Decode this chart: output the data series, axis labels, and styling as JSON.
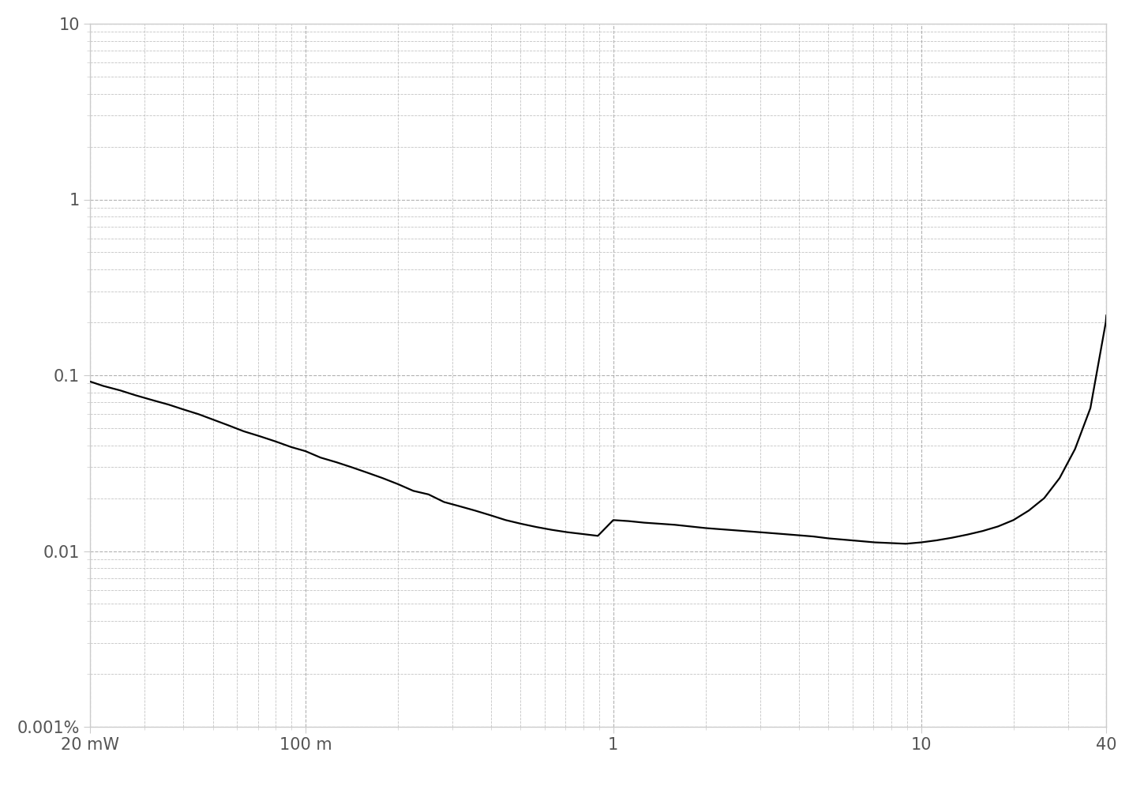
{
  "x_min": 0.02,
  "x_max": 40,
  "y_min": 0.001,
  "y_max": 10,
  "x_ticks_major": [
    0.02,
    0.1,
    1,
    10,
    40
  ],
  "x_tick_labels": [
    "20 mW",
    "100 m",
    "1",
    "10",
    "40"
  ],
  "y_ticks_major": [
    10,
    1,
    0.1,
    0.01,
    0.001
  ],
  "y_tick_labels": [
    "10",
    "1",
    "0.1",
    "0.01",
    "0.001%"
  ],
  "line_color": "#000000",
  "line_width": 1.6,
  "grid_color": "#aaaaaa",
  "grid_style": "--",
  "grid_linewidth": 0.8,
  "background_color": "#ffffff",
  "axes_color": "#cccccc",
  "tick_label_color": "#555555",
  "tick_label_fontsize": 15,
  "curve_x": [
    0.02,
    0.022,
    0.025,
    0.028,
    0.032,
    0.036,
    0.04,
    0.045,
    0.05,
    0.056,
    0.063,
    0.071,
    0.08,
    0.09,
    0.1,
    0.112,
    0.126,
    0.141,
    0.158,
    0.178,
    0.2,
    0.224,
    0.251,
    0.282,
    0.316,
    0.355,
    0.398,
    0.447,
    0.501,
    0.562,
    0.631,
    0.708,
    0.794,
    0.891,
    1.0,
    1.122,
    1.259,
    1.413,
    1.585,
    1.778,
    2.0,
    2.239,
    2.512,
    2.818,
    3.162,
    3.548,
    3.981,
    4.467,
    5.012,
    5.623,
    6.31,
    7.079,
    7.943,
    8.913,
    10.0,
    11.22,
    12.59,
    14.13,
    15.85,
    17.78,
    19.95,
    22.39,
    25.12,
    28.18,
    31.62,
    35.48,
    39.81,
    40.0
  ],
  "curve_y": [
    0.092,
    0.087,
    0.082,
    0.077,
    0.072,
    0.068,
    0.064,
    0.06,
    0.056,
    0.052,
    0.048,
    0.045,
    0.042,
    0.039,
    0.037,
    0.034,
    0.032,
    0.03,
    0.028,
    0.026,
    0.024,
    0.022,
    0.021,
    0.019,
    0.018,
    0.017,
    0.016,
    0.015,
    0.0143,
    0.0137,
    0.0132,
    0.0128,
    0.0125,
    0.0122,
    0.015,
    0.0148,
    0.0145,
    0.0143,
    0.0141,
    0.0138,
    0.0135,
    0.0133,
    0.0131,
    0.0129,
    0.0127,
    0.0125,
    0.0123,
    0.0121,
    0.0118,
    0.0116,
    0.0114,
    0.0112,
    0.0111,
    0.011,
    0.0112,
    0.0115,
    0.0119,
    0.0124,
    0.013,
    0.0138,
    0.015,
    0.017,
    0.02,
    0.026,
    0.038,
    0.065,
    0.2,
    0.22
  ]
}
